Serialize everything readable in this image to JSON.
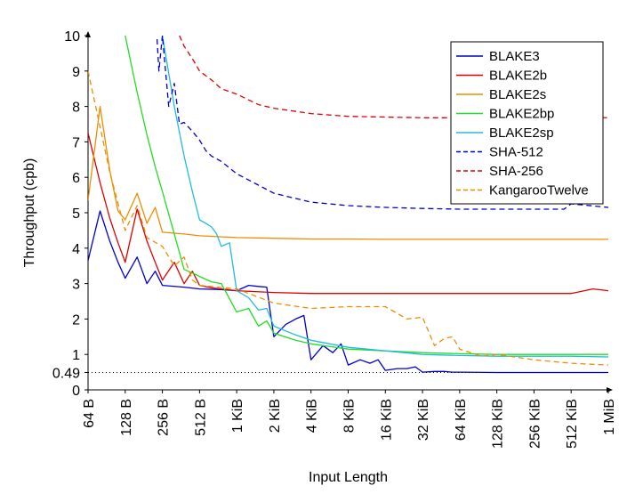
{
  "chart_data": {
    "type": "line",
    "xlabel": "Input Length",
    "ylabel": "Throughput (cpb)",
    "ylim": [
      0,
      10
    ],
    "y_ticks": [
      0,
      1,
      2,
      3,
      4,
      5,
      6,
      7,
      8,
      9,
      10
    ],
    "y_extra_tick": {
      "value": 0.49,
      "label": "0.49",
      "line_style": "dotted"
    },
    "x_scale": "log2",
    "x_tick_labels": [
      "64 B",
      "128 B",
      "256 B",
      "512 B",
      "1 KiB",
      "2 KiB",
      "4 KiB",
      "8 KiB",
      "16 KiB",
      "32 KiB",
      "64 KiB",
      "128 KiB",
      "256 KiB",
      "512 KiB",
      "1 MiB"
    ],
    "x_ticks_bytes": [
      64,
      128,
      256,
      512,
      1024,
      2048,
      4096,
      8192,
      16384,
      32768,
      65536,
      131072,
      262144,
      524288,
      1048576
    ],
    "legend_position": "top-right",
    "grid": false,
    "series": [
      {
        "name": "BLAKE3",
        "color": "#0000cc",
        "dash": "solid",
        "x": [
          64,
          80,
          96,
          112,
          128,
          160,
          192,
          224,
          256,
          384,
          512,
          768,
          1024,
          1280,
          1536,
          1792,
          2048,
          2560,
          3072,
          3584,
          4096,
          5120,
          6144,
          7168,
          8192,
          10240,
          12288,
          14336,
          16384,
          20480,
          24576,
          28672,
          32768,
          40960,
          49152,
          57344,
          65536,
          131072,
          262144,
          524288,
          1048576
        ],
        "y": [
          3.65,
          5.05,
          4.2,
          3.6,
          3.15,
          3.75,
          3.0,
          3.35,
          2.95,
          2.9,
          2.85,
          2.83,
          2.8,
          2.95,
          2.92,
          2.9,
          1.5,
          1.85,
          2.0,
          2.1,
          0.85,
          1.25,
          1.05,
          1.3,
          0.7,
          0.85,
          0.75,
          0.85,
          0.55,
          0.6,
          0.6,
          0.65,
          0.5,
          0.52,
          0.52,
          0.5,
          0.5,
          0.49,
          0.49,
          0.49,
          0.49
        ]
      },
      {
        "name": "BLAKE2b",
        "color": "#e00000",
        "dash": "solid",
        "x": [
          64,
          80,
          96,
          112,
          128,
          160,
          192,
          224,
          256,
          320,
          384,
          448,
          512,
          640,
          768,
          1024,
          2048,
          4096,
          8192,
          16384,
          32768,
          65536,
          131072,
          262144,
          524288,
          786432,
          1048576
        ],
        "y": [
          7.25,
          5.85,
          4.85,
          4.15,
          3.6,
          5.1,
          4.2,
          3.6,
          3.1,
          3.6,
          3.0,
          3.35,
          2.95,
          2.88,
          2.85,
          2.8,
          2.75,
          2.72,
          2.72,
          2.72,
          2.72,
          2.72,
          2.72,
          2.72,
          2.72,
          2.85,
          2.8
        ]
      },
      {
        "name": "BLAKE2s",
        "color": "#f08c00",
        "dash": "solid",
        "x": [
          64,
          80,
          96,
          112,
          128,
          160,
          192,
          224,
          256,
          384,
          512,
          1024,
          2048,
          4096,
          8192,
          16384,
          32768,
          65536,
          131072,
          262144,
          524288,
          1048576
        ],
        "y": [
          5.35,
          8.0,
          6.2,
          5.05,
          4.8,
          5.55,
          4.7,
          5.15,
          4.45,
          4.4,
          4.35,
          4.3,
          4.28,
          4.26,
          4.26,
          4.25,
          4.25,
          4.25,
          4.25,
          4.25,
          4.25,
          4.25
        ]
      },
      {
        "name": "BLAKE2bp",
        "color": "#22dd22",
        "dash": "solid",
        "x": [
          128,
          160,
          192,
          224,
          256,
          320,
          384,
          448,
          512,
          640,
          768,
          1024,
          1280,
          1536,
          1792,
          2048,
          3072,
          4096,
          8192,
          16384,
          32768,
          65536,
          131072,
          262144,
          524288,
          1048576
        ],
        "y": [
          10.0,
          8.4,
          7.2,
          6.3,
          5.6,
          4.4,
          3.4,
          3.3,
          3.2,
          3.05,
          3.0,
          2.2,
          2.3,
          1.8,
          1.95,
          1.6,
          1.4,
          1.3,
          1.15,
          1.1,
          1.05,
          1.02,
          1.0,
          1.0,
          1.0,
          1.0
        ]
      },
      {
        "name": "BLAKE2sp",
        "color": "#22bbdd",
        "dash": "solid",
        "x": [
          256,
          320,
          384,
          448,
          512,
          576,
          640,
          704,
          768,
          896,
          1024,
          1280,
          1536,
          1792,
          2048,
          3072,
          4096,
          8192,
          16384,
          32768,
          65536,
          131072,
          262144,
          524288,
          1048576
        ],
        "y": [
          10.0,
          8.0,
          6.6,
          5.6,
          4.8,
          4.7,
          4.6,
          4.4,
          4.05,
          4.15,
          2.8,
          2.6,
          2.25,
          2.3,
          1.8,
          1.55,
          1.4,
          1.2,
          1.1,
          1.0,
          0.97,
          0.95,
          0.95,
          0.95,
          0.93
        ]
      },
      {
        "name": "SHA-512",
        "color": "#0000cc",
        "dash": "6,4",
        "x": [
          232,
          240,
          256,
          288,
          320,
          352,
          384,
          448,
          512,
          576,
          640,
          768,
          1024,
          2048,
          4096,
          8192,
          16384,
          32768,
          65536,
          131072,
          262144,
          458752,
          524288,
          1048576
        ],
        "y": [
          9.9,
          9.0,
          10.0,
          8.0,
          8.65,
          7.5,
          7.55,
          7.3,
          7.05,
          6.75,
          6.6,
          6.45,
          6.1,
          5.55,
          5.3,
          5.2,
          5.15,
          5.12,
          5.1,
          5.1,
          5.1,
          5.1,
          5.25,
          5.15
        ]
      },
      {
        "name": "SHA-256",
        "color": "#e00000",
        "dash": "6,4",
        "x": [
          352,
          384,
          448,
          512,
          640,
          768,
          1024,
          1536,
          2048,
          4096,
          8192,
          16384,
          32768,
          65536,
          131072,
          262144,
          524288,
          1048576
        ],
        "y": [
          10.0,
          9.7,
          9.35,
          9.0,
          8.75,
          8.5,
          8.35,
          8.05,
          7.95,
          7.8,
          7.72,
          7.7,
          7.68,
          7.68,
          7.68,
          7.68,
          7.7,
          7.68
        ]
      },
      {
        "name": "KangarooTwelve",
        "color": "#f08c00",
        "dash": "6,4",
        "x": [
          64,
          96,
          128,
          160,
          192,
          256,
          320,
          384,
          448,
          512,
          1024,
          2048,
          4096,
          8192,
          16384,
          24576,
          32768,
          40960,
          49152,
          57344,
          65536,
          98304,
          131072,
          262144,
          524288,
          1048576
        ],
        "y": [
          9.0,
          6.15,
          4.5,
          5.2,
          4.3,
          4.05,
          3.5,
          3.75,
          3.1,
          2.95,
          2.85,
          2.45,
          2.3,
          2.35,
          2.35,
          2.0,
          2.05,
          1.25,
          1.45,
          1.5,
          1.15,
          0.95,
          1.0,
          0.85,
          0.75,
          0.7
        ]
      }
    ]
  }
}
